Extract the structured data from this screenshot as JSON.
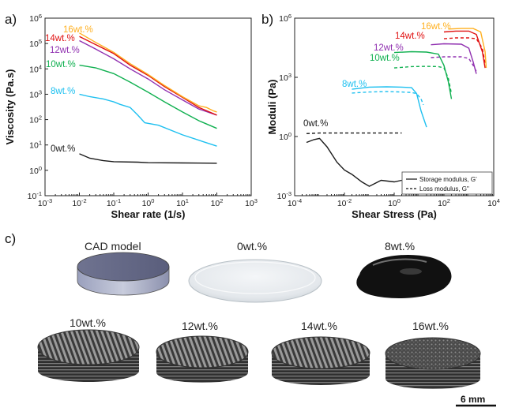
{
  "panel_labels": {
    "a": "a)",
    "b": "b)",
    "c": "c)"
  },
  "chart_data": [
    {
      "type": "line",
      "panel": "a",
      "xlabel": "Shear rate (1/s)",
      "ylabel": "Viscosity (Pa.s)",
      "xscale": "log",
      "yscale": "log",
      "xlim": [
        0.001,
        1000
      ],
      "ylim": [
        0.1,
        1000000
      ],
      "xticks": [
        "10-3",
        "10-2",
        "10-1",
        "100",
        "101",
        "102",
        "103"
      ],
      "yticks": [
        "10-1",
        "100",
        "101",
        "102",
        "103",
        "104",
        "105",
        "106"
      ],
      "series": [
        {
          "name": "0wt.%",
          "color": "#1a1a1a",
          "dash": "solid",
          "x": [
            0.01,
            0.02,
            0.05,
            0.1,
            0.5,
            1,
            10,
            100
          ],
          "y": [
            4.5,
            3.0,
            2.4,
            2.2,
            2.1,
            2.0,
            1.95,
            1.9
          ]
        },
        {
          "name": "8wt.%",
          "color": "#1ec0f0",
          "dash": "solid",
          "x": [
            0.01,
            0.02,
            0.05,
            0.1,
            0.15,
            0.3,
            0.5,
            0.8,
            2,
            10,
            100
          ],
          "y": [
            1000,
            800,
            650,
            500,
            400,
            300,
            150,
            75,
            60,
            25,
            9
          ]
        },
        {
          "name": "10wt.%",
          "color": "#10b050",
          "dash": "solid",
          "x": [
            0.01,
            0.03,
            0.1,
            0.3,
            1,
            3,
            10,
            30,
            100
          ],
          "y": [
            14000,
            11000,
            6500,
            3000,
            1200,
            500,
            200,
            90,
            45
          ]
        },
        {
          "name": "12wt.%",
          "color": "#9030b0",
          "dash": "solid",
          "x": [
            0.01,
            0.03,
            0.1,
            0.3,
            1,
            3,
            10,
            30,
            100
          ],
          "y": [
            130000,
            60000,
            25000,
            10000,
            4000,
            1500,
            600,
            260,
            150
          ]
        },
        {
          "name": "14wt.%",
          "color": "#e01010",
          "dash": "solid",
          "x": [
            0.01,
            0.03,
            0.1,
            0.3,
            1,
            3,
            10,
            30,
            100
          ],
          "y": [
            190000,
            90000,
            40000,
            14000,
            5500,
            2000,
            750,
            300,
            150
          ]
        },
        {
          "name": "16wt.%",
          "color": "#ffb020",
          "dash": "solid",
          "x": [
            0.01,
            0.03,
            0.1,
            0.3,
            1,
            3,
            10,
            30,
            50,
            80,
            100
          ],
          "y": [
            260000,
            110000,
            45000,
            16000,
            6000,
            2200,
            800,
            350,
            300,
            220,
            200
          ]
        }
      ]
    },
    {
      "type": "line",
      "panel": "b",
      "xlabel": "Shear Stress (Pa)",
      "ylabel": "Moduli (Pa)",
      "xscale": "log",
      "yscale": "log",
      "xlim": [
        0.0001,
        10000
      ],
      "ylim": [
        0.001,
        1000000
      ],
      "xticks": [
        "10-4",
        "10-2",
        "100",
        "102",
        "104"
      ],
      "yticks": [
        "10-3",
        "100",
        "103",
        "106"
      ],
      "legend": {
        "position": "bottom-right",
        "entries": [
          "Storage modulus, G'",
          "Loss modulus, G\""
        ]
      },
      "series": [
        {
          "name": "0wt.%",
          "color": "#1a1a1a",
          "dash": "solid",
          "x": [
            0.0003,
            0.0006,
            0.001,
            0.002,
            0.005,
            0.01,
            0.02,
            0.05,
            0.1,
            0.3,
            1,
            2
          ],
          "y": [
            0.5,
            0.7,
            0.8,
            0.3,
            0.05,
            0.02,
            0.012,
            0.005,
            0.003,
            0.006,
            0.005,
            0.006
          ]
        },
        {
          "name": "0wt.% (G\")",
          "color": "#1a1a1a",
          "dash": "dashed",
          "x": [
            0.0003,
            0.001,
            0.01,
            0.1,
            1,
            2
          ],
          "y": [
            1.4,
            1.5,
            1.5,
            1.5,
            1.5,
            1.5
          ]
        },
        {
          "name": "8wt.%",
          "color": "#1ec0f0",
          "dash": "solid",
          "x": [
            0.02,
            0.1,
            0.5,
            2,
            5,
            8,
            12,
            20
          ],
          "y": [
            250,
            320,
            330,
            320,
            300,
            150,
            20,
            3
          ]
        },
        {
          "name": "8wt.% (G\")",
          "color": "#1ec0f0",
          "dash": "dashed",
          "x": [
            0.02,
            0.1,
            0.5,
            2,
            5,
            8,
            12,
            15
          ],
          "y": [
            160,
            180,
            190,
            180,
            170,
            150,
            80,
            40
          ]
        },
        {
          "name": "10wt.%",
          "color": "#10b050",
          "dash": "solid",
          "x": [
            1,
            5,
            20,
            60,
            100,
            150,
            200
          ],
          "y": [
            18000,
            20000,
            19000,
            15000,
            4000,
            600,
            80
          ]
        },
        {
          "name": "10wt.% (G\")",
          "color": "#10b050",
          "dash": "dashed",
          "x": [
            1,
            5,
            20,
            60,
            100,
            150,
            200
          ],
          "y": [
            3000,
            3500,
            3600,
            3500,
            3000,
            900,
            150
          ]
        },
        {
          "name": "12wt.%",
          "color": "#9030b0",
          "dash": "solid",
          "x": [
            30,
            100,
            500,
            1000,
            1500,
            2000
          ],
          "y": [
            45000,
            50000,
            48000,
            30000,
            6000,
            1500
          ]
        },
        {
          "name": "12wt.% (G\")",
          "color": "#9030b0",
          "dash": "dashed",
          "x": [
            30,
            100,
            500,
            1000,
            1500,
            2000
          ],
          "y": [
            10000,
            11000,
            11000,
            9000,
            4000,
            2000
          ]
        },
        {
          "name": "14wt.%",
          "color": "#e01010",
          "dash": "solid",
          "x": [
            100,
            300,
            1000,
            2000,
            3500,
            4500
          ],
          "y": [
            200000,
            220000,
            220000,
            150000,
            20000,
            3000
          ]
        },
        {
          "name": "14wt.% (G\")",
          "color": "#e01010",
          "dash": "dashed",
          "x": [
            100,
            300,
            1000,
            2000,
            3500,
            4500
          ],
          "y": [
            90000,
            100000,
            100000,
            90000,
            30000,
            5000
          ]
        },
        {
          "name": "16wt.%",
          "color": "#ffb020",
          "dash": "solid",
          "x": [
            150,
            500,
            1500,
            3000,
            4500,
            5000
          ],
          "y": [
            280000,
            300000,
            300000,
            200000,
            20000,
            3000
          ]
        }
      ],
      "annotations": [
        {
          "text": "16wt.%",
          "color": "#ffb020"
        },
        {
          "text": "14wt.%",
          "color": "#e01010"
        },
        {
          "text": "12wt.%",
          "color": "#9030b0"
        },
        {
          "text": "10wt.%",
          "color": "#10b050"
        },
        {
          "text": "8wt.%",
          "color": "#1ec0f0"
        },
        {
          "text": "0wt.%",
          "color": "#1a1a1a"
        }
      ]
    }
  ],
  "panel_a_labels": [
    {
      "text": "16wt.%",
      "color": "#ffb020"
    },
    {
      "text": "14wt.%",
      "color": "#e01010"
    },
    {
      "text": "12wt.%",
      "color": "#9030b0"
    },
    {
      "text": "10wt.%",
      "color": "#10b050"
    },
    {
      "text": "8wt.%",
      "color": "#1ec0f0"
    },
    {
      "text": "0wt.%",
      "color": "#1a1a1a"
    }
  ],
  "samples": {
    "cad": "CAD model",
    "s0": "0wt.%",
    "s8": "8wt.%",
    "s10": "10wt.%",
    "s12": "12wt.%",
    "s14": "14wt.%",
    "s16": "16wt.%"
  },
  "scale_bar": "6 mm"
}
